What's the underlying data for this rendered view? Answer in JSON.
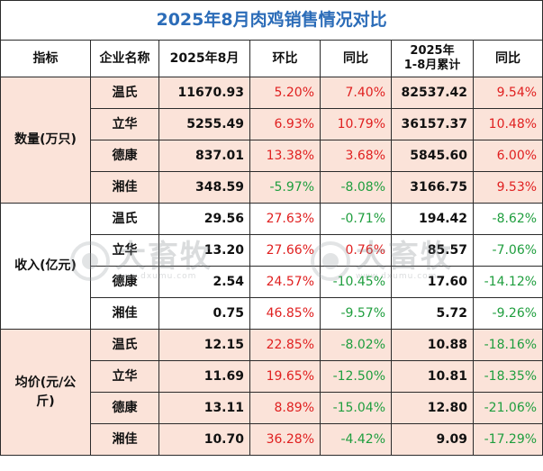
{
  "title": "2025年8月肉鸡销售情况对比",
  "headers": {
    "indicator": "指标",
    "company": "企业名称",
    "month": "2025年8月",
    "mom": "环比",
    "yoy": "同比",
    "cum_line1": "2025年",
    "cum_line2": "1-8月累计",
    "cum_yoy": "同比"
  },
  "groups": [
    {
      "label": "数量(万只)",
      "rows": [
        {
          "company": "温氏",
          "month": "11670.93",
          "mom": "5.20%",
          "yoy": "7.40%",
          "cum": "82537.42",
          "cum_yoy": "9.54%"
        },
        {
          "company": "立华",
          "month": "5255.49",
          "mom": "6.93%",
          "yoy": "10.79%",
          "cum": "36157.37",
          "cum_yoy": "10.48%"
        },
        {
          "company": "德康",
          "month": "837.01",
          "mom": "13.38%",
          "yoy": "3.68%",
          "cum": "5845.60",
          "cum_yoy": "6.00%"
        },
        {
          "company": "湘佳",
          "month": "348.59",
          "mom": "-5.97%",
          "yoy": "-8.08%",
          "cum": "3166.75",
          "cum_yoy": "9.53%"
        }
      ]
    },
    {
      "label": "收入(亿元)",
      "rows": [
        {
          "company": "温氏",
          "month": "29.56",
          "mom": "27.63%",
          "yoy": "-0.71%",
          "cum": "194.42",
          "cum_yoy": "-8.62%"
        },
        {
          "company": "立华",
          "month": "13.20",
          "mom": "27.66%",
          "yoy": "0.76%",
          "cum": "85.57",
          "cum_yoy": "-7.06%"
        },
        {
          "company": "德康",
          "month": "2.54",
          "mom": "24.57%",
          "yoy": "-10.45%",
          "cum": "17.60",
          "cum_yoy": "-14.12%"
        },
        {
          "company": "湘佳",
          "month": "0.75",
          "mom": "46.85%",
          "yoy": "-9.57%",
          "cum": "5.72",
          "cum_yoy": "-9.26%"
        }
      ]
    },
    {
      "label": "均价(元/公斤)",
      "rows": [
        {
          "company": "温氏",
          "month": "12.15",
          "mom": "22.85%",
          "yoy": "-8.02%",
          "cum": "10.88",
          "cum_yoy": "-18.16%"
        },
        {
          "company": "立华",
          "month": "11.69",
          "mom": "19.65%",
          "yoy": "-12.50%",
          "cum": "10.81",
          "cum_yoy": "-18.35%"
        },
        {
          "company": "德康",
          "month": "13.11",
          "mom": "8.89%",
          "yoy": "-15.04%",
          "cum": "12.80",
          "cum_yoy": "-21.06%"
        },
        {
          "company": "湘佳",
          "month": "10.70",
          "mom": "36.28%",
          "yoy": "-4.42%",
          "cum": "9.09",
          "cum_yoy": "-17.29%"
        }
      ]
    }
  ],
  "watermark": {
    "brand": "大畜牧",
    "domain": "www.dxumu.com"
  },
  "colors": {
    "title": "#2b6cb8",
    "positive": "#e02020",
    "negative": "#1f9e3e",
    "band": "#fbe3d9"
  }
}
